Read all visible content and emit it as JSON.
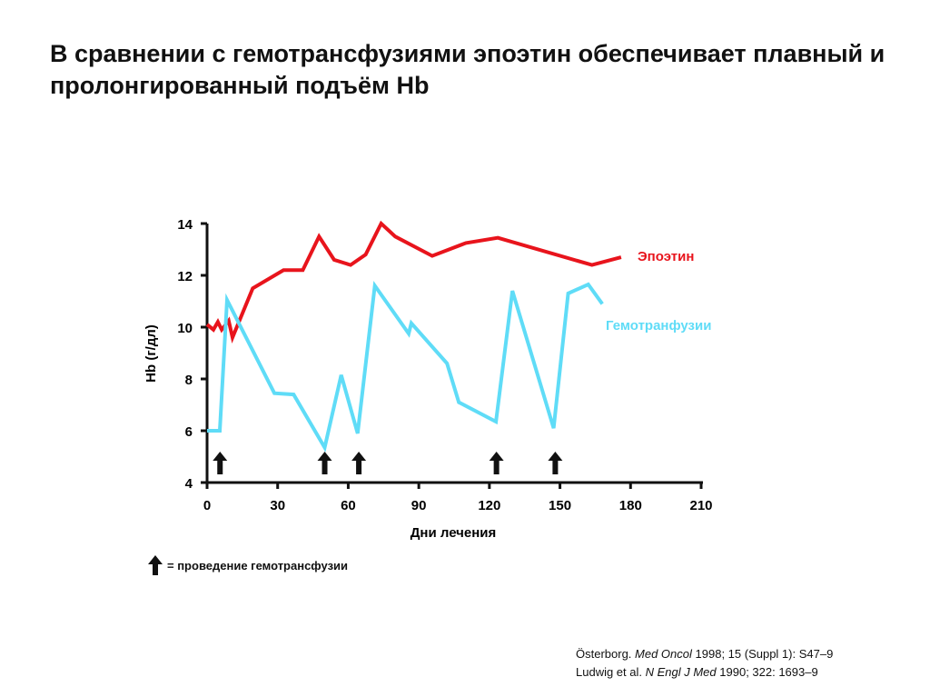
{
  "title": "В сравнении с гемотрансфузиями эпоэтин обеспечивает плавный и пролонгированный подъём Hb",
  "legend_note": "= проведение гемотрансфузии",
  "citations": [
    [
      {
        "t": "Österborg. ",
        "i": false
      },
      {
        "t": "Med Oncol",
        "i": true
      },
      {
        "t": " 1998; 15 (Suppl 1):  S47–9",
        "i": false
      }
    ],
    [
      {
        "t": "Ludwig et al. ",
        "i": false
      },
      {
        "t": "N Engl J Med",
        "i": true
      },
      {
        "t": " 1990; 322:  1693–9",
        "i": false
      }
    ]
  ],
  "chart_data": {
    "type": "line",
    "title": "",
    "xlabel": "Дни лечения",
    "ylabel": "Hb (г/дл)",
    "xlim": [
      0,
      210
    ],
    "ylim": [
      4,
      14
    ],
    "xticks": [
      0,
      30,
      60,
      90,
      120,
      150,
      180,
      210
    ],
    "yticks": [
      4,
      6,
      8,
      10,
      12,
      14
    ],
    "grid": false,
    "series": [
      {
        "name": "Эпоэтин",
        "color": "#e8141c",
        "x": [
          0,
          2.7,
          4.6,
          6.2,
          9.2,
          10.8,
          19.4,
          32.5,
          40.7,
          47.6,
          54,
          61,
          67.4,
          74,
          80,
          95.7,
          110,
          123.6,
          163.6,
          176
        ],
        "y": [
          10.1,
          9.9,
          10.2,
          9.9,
          10.25,
          9.6,
          11.5,
          12.2,
          12.2,
          13.5,
          12.6,
          12.4,
          12.8,
          14.0,
          13.5,
          12.75,
          13.25,
          13.45,
          12.4,
          12.7
        ]
      },
      {
        "name": "Гемотранфузии",
        "color": "#5fdcf7",
        "x": [
          0,
          5.4,
          8.5,
          28.6,
          36.8,
          50,
          57,
          64,
          71.3,
          85.7,
          86.8,
          102,
          107,
          122.8,
          129.8,
          147.3,
          153.5,
          162,
          168
        ],
        "y": [
          6.0,
          6.0,
          11.05,
          7.45,
          7.4,
          5.35,
          8.15,
          5.9,
          11.6,
          9.75,
          10.15,
          8.6,
          7.1,
          6.35,
          11.4,
          6.1,
          11.3,
          11.65,
          10.9
        ]
      }
    ],
    "transfusion_days": [
      5.5,
      50,
      64.5,
      123,
      148
    ]
  }
}
